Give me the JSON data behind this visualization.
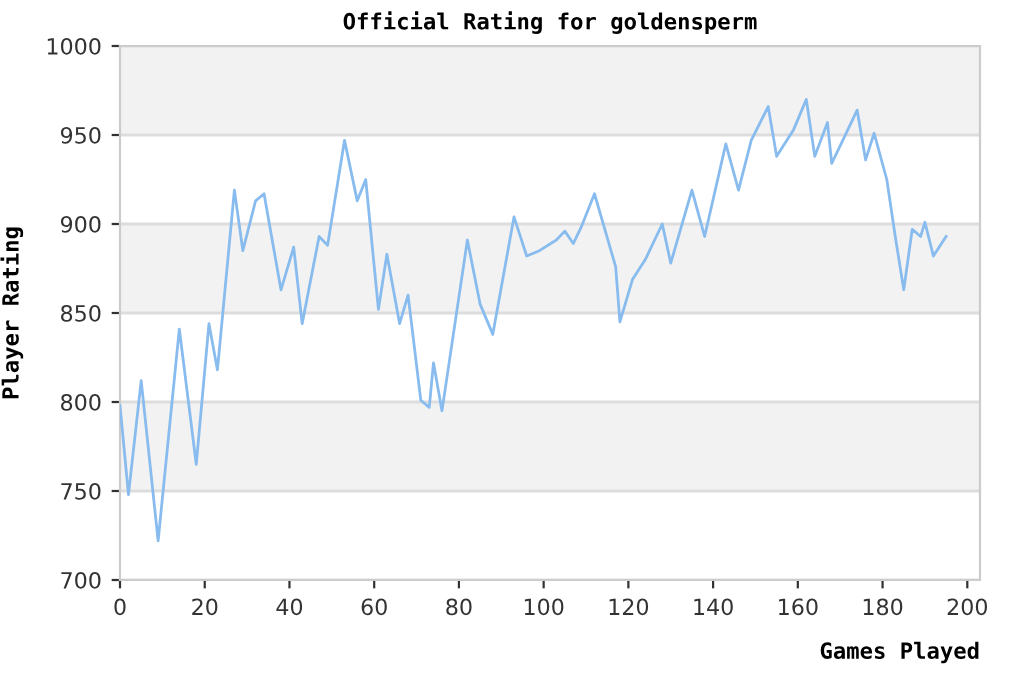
{
  "chart_data": {
    "type": "line",
    "title": "Official Rating for goldensperm",
    "xlabel": "Games Played",
    "ylabel": "Player Rating",
    "series": [
      {
        "color": "#88bbee",
        "x": [
          0,
          2,
          5,
          9,
          14,
          18,
          21,
          23,
          27,
          29,
          32,
          34,
          38,
          41,
          43,
          47,
          49,
          53,
          56,
          58,
          61,
          63,
          66,
          68,
          71,
          73,
          74,
          76,
          82,
          85,
          88,
          93,
          96,
          99,
          103,
          105,
          107,
          109,
          112,
          117,
          118,
          121,
          124,
          128,
          130,
          135,
          138,
          143,
          146,
          149,
          153,
          155,
          159,
          162,
          164,
          167,
          168,
          171,
          174,
          176,
          178,
          181,
          183,
          185,
          187,
          189,
          190,
          192,
          195
        ],
        "values": [
          798,
          748,
          812,
          722,
          841,
          765,
          844,
          818,
          919,
          885,
          913,
          917,
          863,
          887,
          844,
          893,
          888,
          947,
          913,
          925,
          852,
          883,
          844,
          860,
          801,
          797,
          822,
          795,
          891,
          855,
          838,
          904,
          882,
          885,
          891,
          896,
          889,
          899,
          917,
          876,
          845,
          869,
          880,
          900,
          878,
          919,
          893,
          945,
          919,
          947,
          966,
          938,
          953,
          970,
          938,
          957,
          934,
          949,
          964,
          936,
          951,
          925,
          893,
          863,
          897,
          893,
          901,
          882,
          893
        ]
      }
    ],
    "xlim": [
      0,
      203
    ],
    "ylim": [
      700,
      1000
    ],
    "xticks": [
      0,
      20,
      40,
      60,
      80,
      100,
      120,
      140,
      160,
      180,
      200
    ],
    "yticks": [
      700,
      750,
      800,
      850,
      900,
      950,
      1000
    ],
    "grid": "y",
    "marker": "none",
    "line_style": "solid",
    "bands": [
      {
        "axis": "y",
        "from": 750,
        "to": 800,
        "color": "#f2f2f2"
      },
      {
        "axis": "y",
        "from": 850,
        "to": 900,
        "color": "#f2f2f2"
      },
      {
        "axis": "y",
        "from": 950,
        "to": 1000,
        "color": "#f2f2f2"
      }
    ]
  }
}
